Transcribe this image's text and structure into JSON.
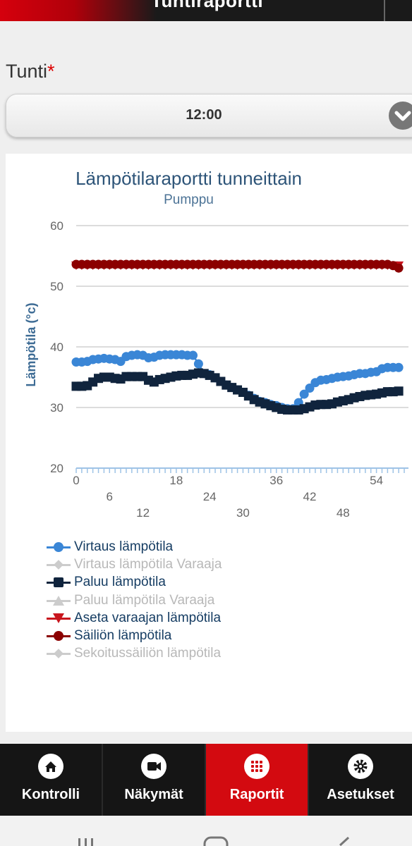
{
  "header": {
    "title": "Tuntiraportti"
  },
  "field": {
    "label": "Tunti",
    "required_mark": "*",
    "selected_value": "12:00"
  },
  "chart_data": {
    "type": "line",
    "title": "Lämpötilaraportti tunneittain",
    "subtitle": "Pumppu",
    "xlabel": "",
    "ylabel": "Lämpötila (°c)",
    "ylim": [
      20,
      60
    ],
    "xlim": [
      0,
      59
    ],
    "yticks": [
      20,
      30,
      40,
      50,
      60
    ],
    "xticks": [
      0,
      6,
      12,
      18,
      24,
      30,
      36,
      42,
      48,
      54
    ],
    "grid": true,
    "legend_position": "bottom",
    "series": [
      {
        "name": "Virtaus lämpötila",
        "color": "#3a86d6",
        "marker": "circle",
        "visible": true,
        "x": [
          0,
          1,
          2,
          3,
          4,
          5,
          6,
          7,
          8,
          9,
          10,
          11,
          12,
          13,
          14,
          15,
          16,
          17,
          18,
          19,
          20,
          21,
          22,
          23,
          24,
          25,
          26,
          27,
          28,
          29,
          30,
          31,
          32,
          33,
          34,
          35,
          36,
          37,
          38,
          39,
          40,
          41,
          42,
          43,
          44,
          45,
          46,
          47,
          48,
          49,
          50,
          51,
          52,
          53,
          54,
          55,
          56,
          57,
          58
        ],
        "y": [
          37.5,
          37.5,
          37.6,
          37.9,
          38,
          38.1,
          38,
          37.9,
          37.6,
          38.4,
          38.6,
          38.7,
          38.6,
          38.2,
          38.3,
          38.6,
          38.7,
          38.7,
          38.7,
          38.7,
          38.6,
          38.6,
          37.2,
          35.6,
          35.4,
          34.9,
          34.3,
          33.7,
          33.3,
          32.9,
          32.5,
          32,
          31.5,
          31,
          30.8,
          30.5,
          30.3,
          30,
          29.8,
          29.8,
          30.8,
          32.2,
          33.2,
          34.1,
          34.5,
          34.6,
          34.8,
          35,
          35.1,
          35.2,
          35.4,
          35.6,
          35.6,
          35.8,
          35.9,
          36.4,
          36.6,
          36.6,
          36.6
        ]
      },
      {
        "name": "Virtaus lämpötila Varaaja",
        "color": "#cccccc",
        "marker": "diamond",
        "visible": false,
        "x": [],
        "y": []
      },
      {
        "name": "Paluu lämpötila",
        "color": "#10243d",
        "marker": "square",
        "visible": true,
        "x": [
          0,
          1,
          2,
          3,
          4,
          5,
          6,
          7,
          8,
          9,
          10,
          11,
          12,
          13,
          14,
          15,
          16,
          17,
          18,
          19,
          20,
          21,
          22,
          23,
          24,
          25,
          26,
          27,
          28,
          29,
          30,
          31,
          32,
          33,
          34,
          35,
          36,
          37,
          38,
          39,
          40,
          41,
          42,
          43,
          44,
          45,
          46,
          47,
          48,
          49,
          50,
          51,
          52,
          53,
          54,
          55,
          56,
          57,
          58
        ],
        "y": [
          33.5,
          33.5,
          33.6,
          34.2,
          34.8,
          35,
          35,
          34.8,
          34.7,
          35.1,
          35.1,
          35.1,
          35.1,
          34.5,
          34.2,
          34.6,
          34.8,
          35,
          35.2,
          35.3,
          35.3,
          35.5,
          35.7,
          35.6,
          35.3,
          34.9,
          34.3,
          33.7,
          33.3,
          32.9,
          32.5,
          31.9,
          31.3,
          30.9,
          30.6,
          30.3,
          30,
          29.7,
          29.6,
          29.6,
          29.6,
          29.8,
          30.1,
          30.4,
          30.5,
          30.5,
          30.6,
          30.9,
          31.1,
          31.3,
          31.6,
          31.8,
          32,
          32.1,
          32.2,
          32.4,
          32.6,
          32.6,
          32.7
        ]
      },
      {
        "name": "Paluu lämpötila Varaaja",
        "color": "#cccccc",
        "marker": "triangle-up",
        "visible": false,
        "x": [],
        "y": []
      },
      {
        "name": "Aseta varaajan lämpötila",
        "color": "#c8151d",
        "marker": "triangle-down",
        "visible": true,
        "x": [
          0,
          1,
          2,
          3,
          4,
          5,
          6,
          7,
          8,
          9,
          10,
          11,
          12,
          13,
          14,
          15,
          16,
          17,
          18,
          19,
          20,
          21,
          22,
          23,
          24,
          25,
          26,
          27,
          28,
          29,
          30,
          31,
          32,
          33,
          34,
          35,
          36,
          37,
          38,
          39,
          40,
          41,
          42,
          43,
          44,
          45,
          46,
          47,
          48,
          49,
          50,
          51,
          52,
          53,
          54,
          55,
          56,
          57,
          58
        ],
        "y": [
          53.5,
          53.5,
          53.5,
          53.5,
          53.5,
          53.5,
          53.5,
          53.5,
          53.5,
          53.5,
          53.5,
          53.5,
          53.5,
          53.5,
          53.5,
          53.5,
          53.5,
          53.5,
          53.5,
          53.5,
          53.5,
          53.5,
          53.5,
          53.5,
          53.5,
          53.5,
          53.5,
          53.5,
          53.5,
          53.5,
          53.5,
          53.5,
          53.5,
          53.5,
          53.5,
          53.5,
          53.5,
          53.5,
          53.5,
          53.5,
          53.5,
          53.5,
          53.5,
          53.5,
          53.5,
          53.5,
          53.5,
          53.5,
          53.5,
          53.5,
          53.5,
          53.5,
          53.5,
          53.5,
          53.5,
          53.5,
          53.5,
          53.5,
          53.5
        ]
      },
      {
        "name": "Säiliön lämpötila",
        "color": "#8b0000",
        "marker": "circle",
        "visible": true,
        "x": [
          0,
          1,
          2,
          3,
          4,
          5,
          6,
          7,
          8,
          9,
          10,
          11,
          12,
          13,
          14,
          15,
          16,
          17,
          18,
          19,
          20,
          21,
          22,
          23,
          24,
          25,
          26,
          27,
          28,
          29,
          30,
          31,
          32,
          33,
          34,
          35,
          36,
          37,
          38,
          39,
          40,
          41,
          42,
          43,
          44,
          45,
          46,
          47,
          48,
          49,
          50,
          51,
          52,
          53,
          54,
          55,
          56,
          57,
          58
        ],
        "y": [
          53.6,
          53.6,
          53.6,
          53.6,
          53.6,
          53.6,
          53.6,
          53.6,
          53.6,
          53.6,
          53.6,
          53.6,
          53.6,
          53.6,
          53.6,
          53.6,
          53.6,
          53.6,
          53.6,
          53.6,
          53.6,
          53.6,
          53.6,
          53.6,
          53.6,
          53.6,
          53.6,
          53.6,
          53.6,
          53.6,
          53.6,
          53.6,
          53.6,
          53.6,
          53.6,
          53.6,
          53.6,
          53.6,
          53.6,
          53.6,
          53.6,
          53.6,
          53.6,
          53.6,
          53.6,
          53.6,
          53.6,
          53.6,
          53.6,
          53.6,
          53.6,
          53.6,
          53.6,
          53.6,
          53.6,
          53.6,
          53.6,
          53.4,
          53.0
        ]
      },
      {
        "name": "Sekoitussäiliön lämpötila",
        "color": "#cccccc",
        "marker": "diamond",
        "visible": false,
        "x": [],
        "y": []
      }
    ]
  },
  "nav": {
    "items": [
      {
        "label": "Kontrolli",
        "icon": "home-icon",
        "active": false
      },
      {
        "label": "Näkymät",
        "icon": "camera-icon",
        "active": false
      },
      {
        "label": "Raportit",
        "icon": "grid-icon",
        "active": true
      },
      {
        "label": "Asetukset",
        "icon": "gear-icon",
        "active": false
      }
    ]
  }
}
